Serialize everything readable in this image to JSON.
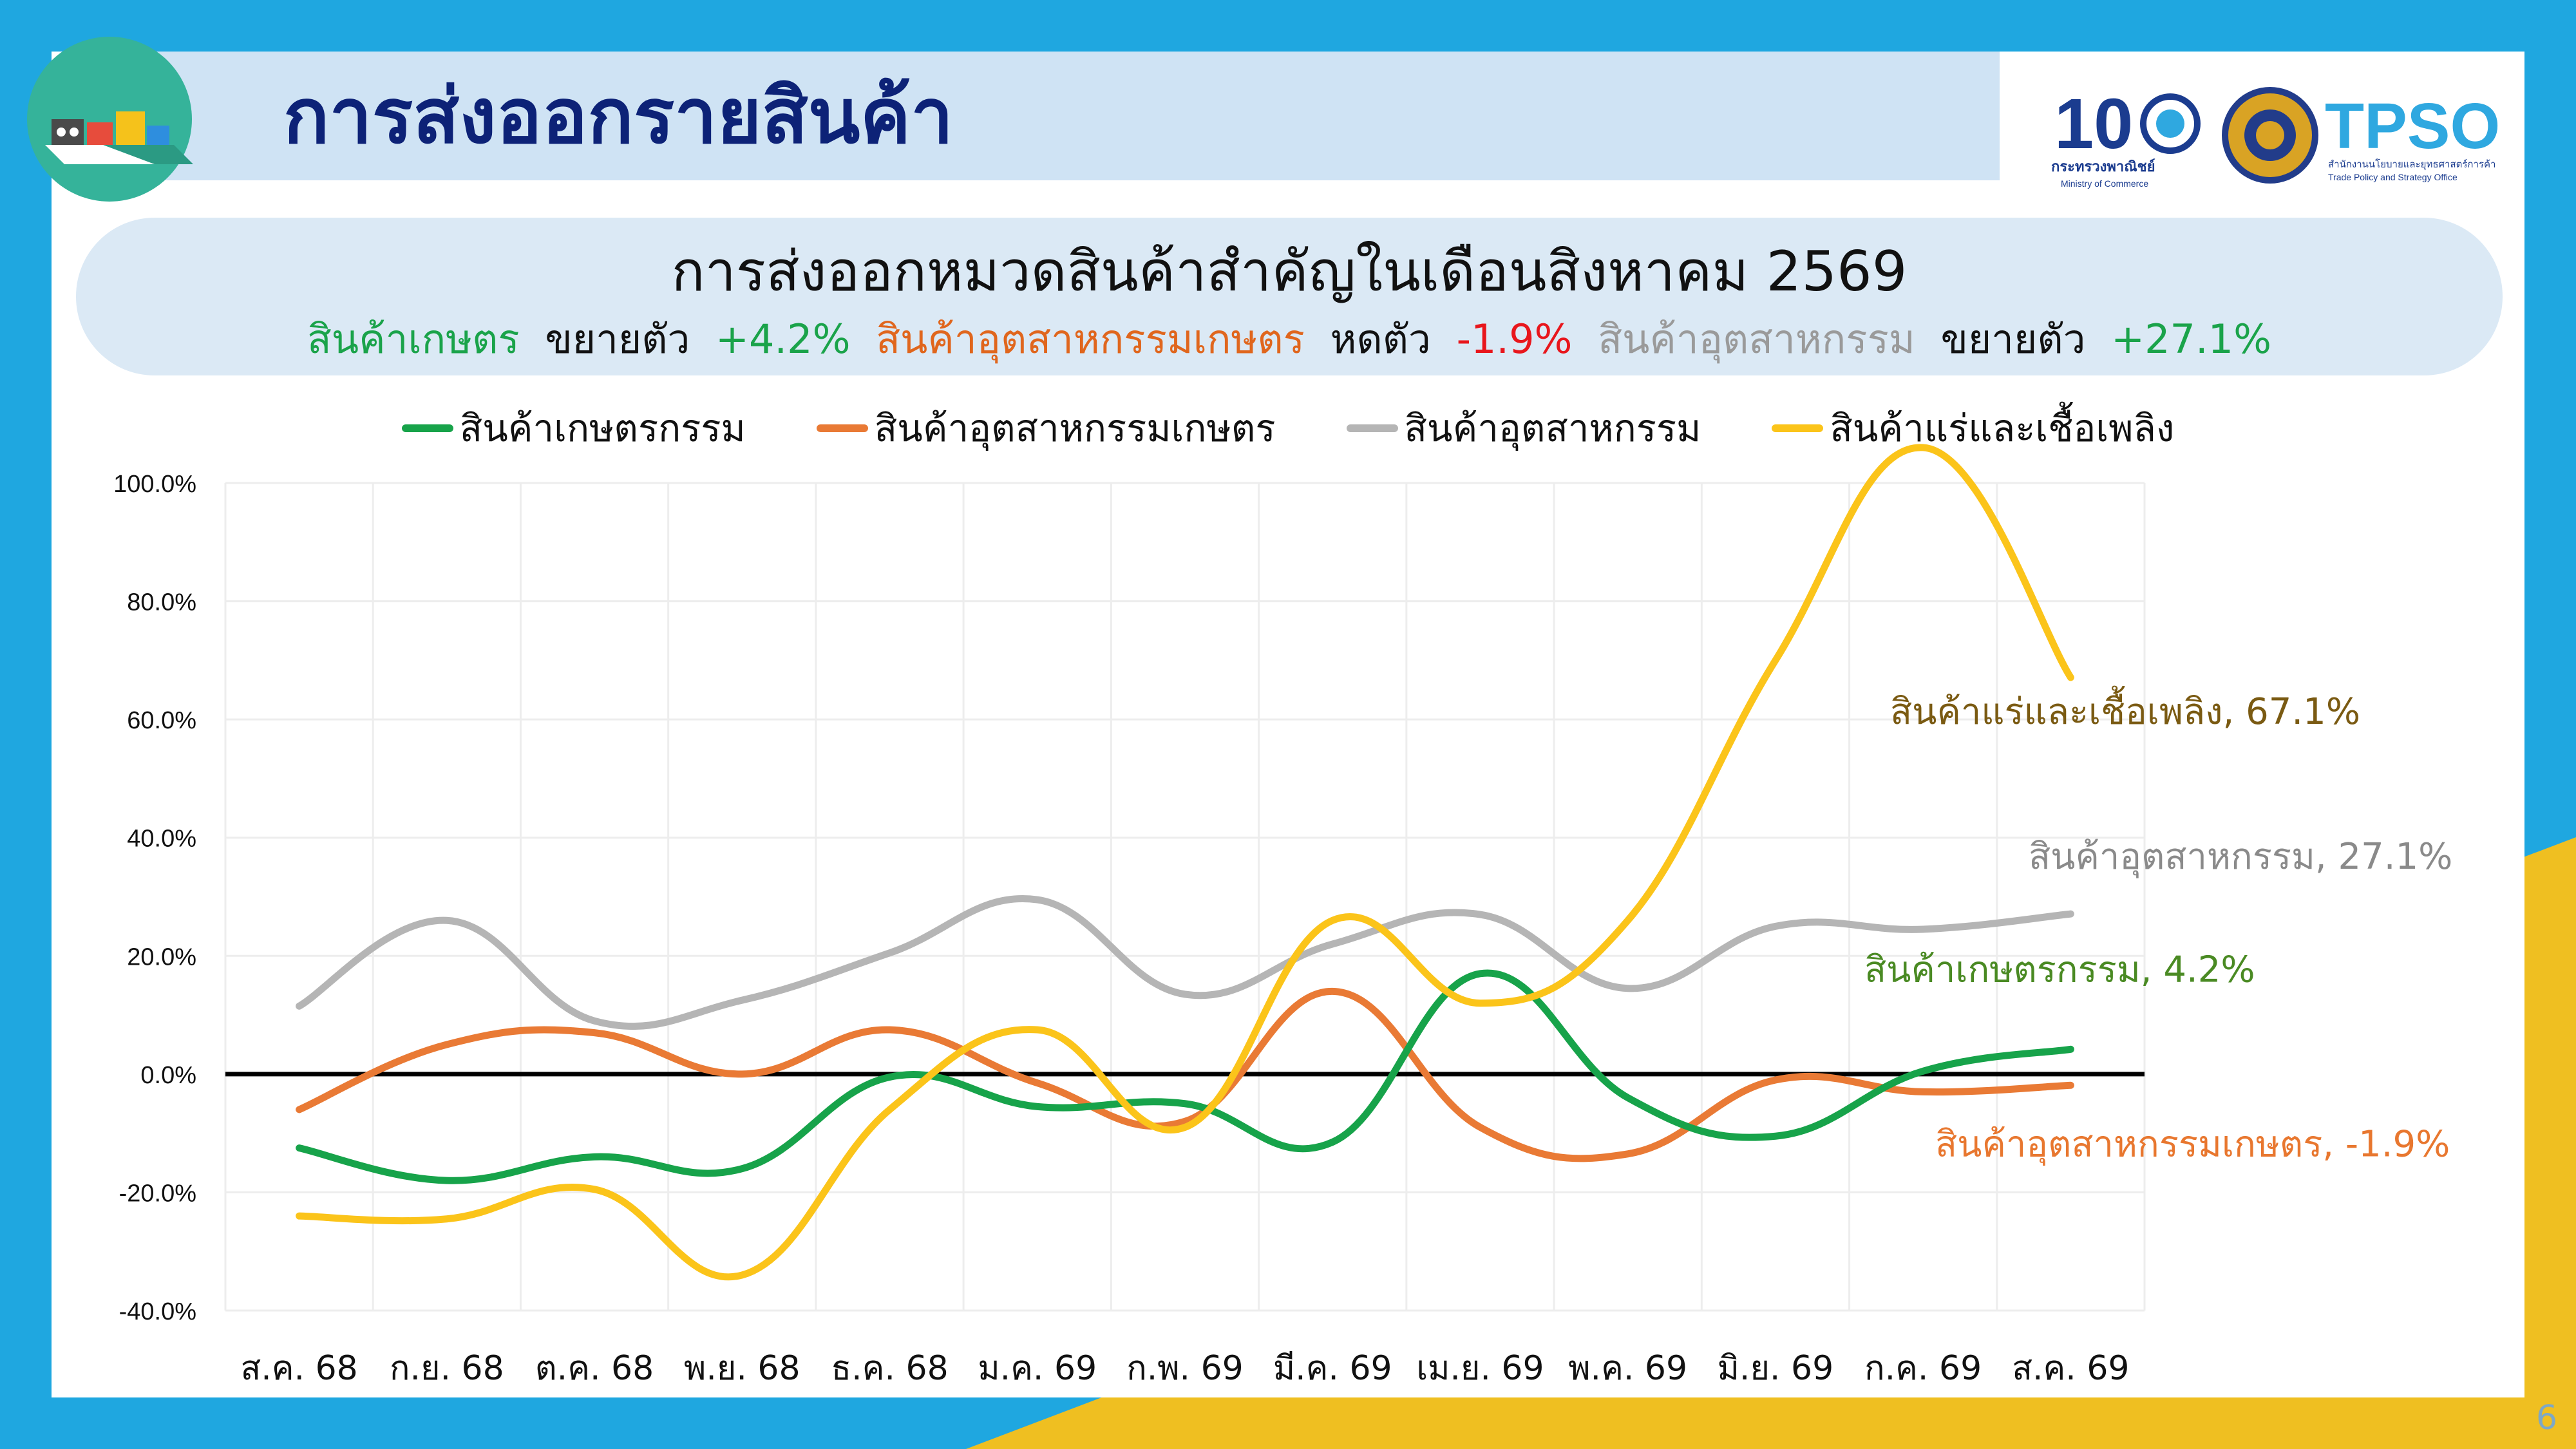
{
  "header": {
    "title": "การส่งออกรายสินค้า",
    "logo_text": {
      "moc_number": "10",
      "moc_name_th": "กระทรวงพาณิชย์",
      "moc_name_en": "Ministry of Commerce",
      "tpso": "TPSO",
      "tpso_th": "สำนักงานนโยบายและยุทธศาสตร์การค้า",
      "tpso_en": "Trade Policy and Strategy Office"
    }
  },
  "summary": {
    "title": "การส่งออกหมวดสินค้าสำคัญในเดือนสิงหาคม 2569",
    "items": [
      {
        "name": "สินค้าเกษตร",
        "verb": "ขยายตัว",
        "value": "+4.2%",
        "name_color": "#1aa34a",
        "value_color": "#1aa34a"
      },
      {
        "name": "สินค้าอุตสาหกรรมเกษตร",
        "verb": "หดตัว",
        "value": "-1.9%",
        "name_color": "#e0661d",
        "value_color": "#e8161c"
      },
      {
        "name": "สินค้าอุตสาหกรรม",
        "verb": "ขยายตัว",
        "value": "+27.1%",
        "name_color": "#9a9a9a",
        "value_color": "#1aa34a"
      }
    ]
  },
  "page_number": "6",
  "chart_data": {
    "type": "line",
    "categories": [
      "ส.ค. 68",
      "ก.ย. 68",
      "ต.ค. 68",
      "พ.ย. 68",
      "ธ.ค. 68",
      "ม.ค. 69",
      "ก.พ. 69",
      "มี.ค. 69",
      "เม.ย. 69",
      "พ.ค. 69",
      "มิ.ย. 69",
      "ก.ค. 69",
      "ส.ค. 69"
    ],
    "yticks": [
      "100.0%",
      "80.0%",
      "60.0%",
      "40.0%",
      "20.0%",
      "0.0%",
      "-20.0%",
      "-40.0%"
    ],
    "ylim": [
      -40,
      100
    ],
    "grid": true,
    "legend_position": "top",
    "series": [
      {
        "name": "สินค้าเกษตรกรรม",
        "color": "#17a34a",
        "values": [
          -12.5,
          -18,
          -14,
          -16,
          -0.5,
          -5.5,
          -5,
          -11.5,
          17,
          -4,
          -10.5,
          0.5,
          4.2
        ],
        "end_label": "สินค้าเกษตรกรรม, 4.2%",
        "label_color": "#4a8a23"
      },
      {
        "name": "สินค้าอุตสาหกรรมเกษตร",
        "color": "#e97a35",
        "values": [
          -6,
          5,
          7,
          0,
          7.5,
          -1.5,
          -8,
          14,
          -9,
          -13.5,
          -1,
          -3,
          -1.9
        ],
        "end_label": "สินค้าอุตสาหกรรมเกษตร, -1.9%",
        "label_color": "#e8772f"
      },
      {
        "name": "สินค้าอุตสาหกรรม",
        "color": "#b5b5b5",
        "values": [
          11.5,
          26,
          9,
          12.5,
          20.5,
          29.5,
          13.5,
          22,
          27,
          14.5,
          25,
          24.5,
          27.1
        ],
        "end_label": "สินค้าอุตสาหกรรม, 27.1%",
        "label_color": "#8a8a8a"
      },
      {
        "name": "สินค้าแร่และเชื้อเพลิง",
        "color": "#fbc41a",
        "values": [
          -24,
          -24.5,
          -19.5,
          -34,
          -6,
          7.5,
          -9,
          26,
          12,
          26,
          70,
          106,
          67.1
        ],
        "end_label": "สินค้าแร่และเชื้อเพลิง, 67.1%",
        "label_color": "#7a5a12"
      }
    ]
  }
}
